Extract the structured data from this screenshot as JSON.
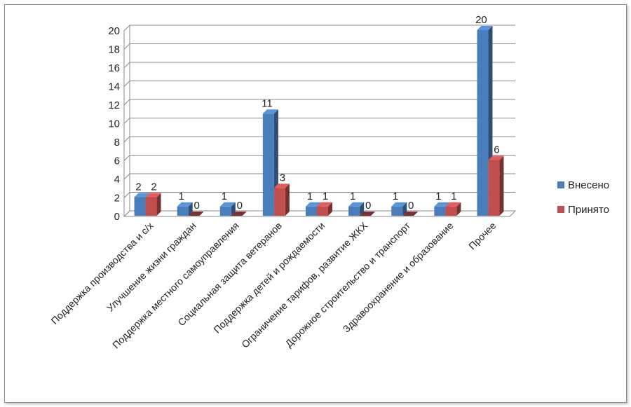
{
  "chart_data": {
    "type": "bar",
    "categories": [
      "Поддержка производства и с/х",
      "Улучшение жизни граждан",
      "Поддержка местного самоуправления",
      "Социальная защита ветеранов",
      "Поддержка детей и рождаемости",
      "Ограничение тарифов, развитие ЖКХ",
      "Дорожное строительство и транспорт",
      "Здравоохранение и образование",
      "Прочее"
    ],
    "series": [
      {
        "name": "Внесено",
        "values": [
          2,
          1,
          1,
          11,
          1,
          1,
          1,
          1,
          20
        ],
        "color": "#4a7ebb"
      },
      {
        "name": "Принято",
        "values": [
          2,
          0,
          0,
          3,
          1,
          0,
          0,
          1,
          6
        ],
        "color": "#c0504d"
      }
    ],
    "ylim": [
      0,
      20
    ],
    "yticks": [
      0,
      2,
      4,
      6,
      8,
      10,
      12,
      14,
      16,
      18,
      20
    ],
    "grid": true,
    "legend_position": "right",
    "style": "3d-column",
    "title": "",
    "xlabel": "",
    "ylabel": ""
  }
}
